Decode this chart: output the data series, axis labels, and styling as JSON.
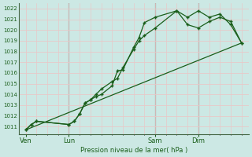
{
  "background_color": "#cce8e4",
  "grid_color_major": "#e8c8c8",
  "grid_color_minor": "#e8c8c8",
  "line_color": "#1a5e1a",
  "marker_color": "#1a5e1a",
  "ylabel_text": "Pression niveau de la mer( hPa )",
  "ylim": [
    1010.3,
    1022.5
  ],
  "yticks": [
    1011,
    1012,
    1013,
    1014,
    1015,
    1016,
    1017,
    1018,
    1019,
    1020,
    1021,
    1022
  ],
  "day_labels": [
    "Ven",
    "Lun",
    "Sam",
    "Dim"
  ],
  "day_positions": [
    0,
    24,
    72,
    96
  ],
  "total_hours": 120,
  "series1_x": [
    0,
    3,
    6,
    24,
    27,
    30,
    33,
    36,
    39,
    42,
    48,
    51,
    54,
    60,
    63,
    66,
    72,
    84,
    90,
    96,
    102,
    108,
    114,
    120
  ],
  "series1_y": [
    1010.7,
    1011.2,
    1011.5,
    1011.2,
    1011.5,
    1012.2,
    1013.2,
    1013.5,
    1014.0,
    1014.5,
    1015.2,
    1015.5,
    1016.5,
    1018.2,
    1019.0,
    1019.5,
    1020.2,
    1021.8,
    1021.2,
    1021.8,
    1021.2,
    1021.5,
    1020.5,
    1018.8
  ],
  "series2_x": [
    0,
    3,
    6,
    24,
    27,
    30,
    33,
    36,
    39,
    42,
    48,
    51,
    54,
    60,
    63,
    66,
    72,
    84,
    90,
    96,
    102,
    108,
    114,
    120
  ],
  "series2_y": [
    1010.7,
    1011.2,
    1011.5,
    1011.2,
    1011.5,
    1012.2,
    1013.2,
    1013.5,
    1013.8,
    1014.0,
    1014.8,
    1016.2,
    1016.3,
    1018.4,
    1019.3,
    1020.7,
    1021.2,
    1021.8,
    1020.5,
    1020.2,
    1020.8,
    1021.2,
    1020.8,
    1018.8
  ],
  "series3_x": [
    0,
    120
  ],
  "series3_y": [
    1010.7,
    1018.8
  ],
  "xlim": [
    -4,
    124
  ],
  "vlines_x": [
    24,
    72,
    96
  ],
  "vline_color": "#556655",
  "tick_color": "#1a5e1a",
  "label_color": "#1a5e1a"
}
